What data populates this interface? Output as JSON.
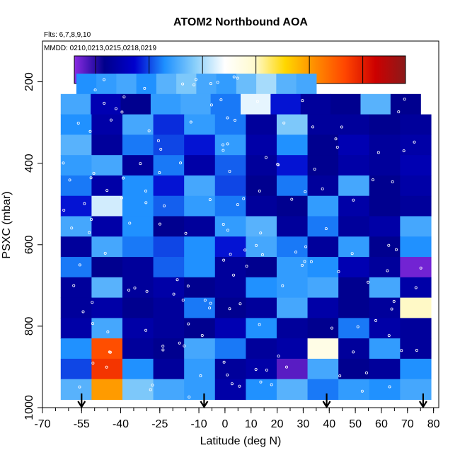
{
  "chart_data": {
    "type": "heatmap",
    "title": "ATOM2 Northbound AOA",
    "flights_label": "Flts: 6,7,8,9,10",
    "dates_label": "MMDD: 0210,0213,0215,0218,0219",
    "xlabel": "Latitude (deg N)",
    "ylabel": "PSXC (mbar)",
    "xlim": [
      -70,
      82
    ],
    "ylim": [
      1000,
      100
    ],
    "x_ticks": [
      -70,
      -55,
      -40,
      -25,
      -10,
      0,
      10,
      20,
      30,
      40,
      50,
      60,
      70,
      80
    ],
    "x_minor_step": 5,
    "y_ticks": [
      200,
      400,
      600,
      800,
      1000
    ],
    "colorbar": {
      "range": [
        -0.4,
        5.8
      ],
      "ticks": [
        0,
        1,
        2,
        3,
        4,
        5
      ],
      "colors": [
        "#8a2be2",
        "#00008b",
        "#0000cd",
        "#1e90ff",
        "#87cefa",
        "#ffffff",
        "#fffacd",
        "#ffd700",
        "#ff8c00",
        "#ff4500",
        "#cd0000",
        "#8b1a1a"
      ]
    },
    "layer_pressures": [
      200,
      250,
      300,
      350,
      400,
      450,
      500,
      550,
      600,
      650,
      700,
      750,
      800,
      850,
      900,
      950
    ],
    "segments": [
      {
        "p": 200,
        "lat0": -57,
        "lat1": 35,
        "values": [
          1.3,
          1.4,
          1.5,
          1.3,
          1.6,
          1.8,
          1.5,
          1.4,
          1.7,
          2.0,
          1.6,
          1.5
        ]
      },
      {
        "p": 250,
        "lat0": -63,
        "lat1": 75,
        "values": [
          1.5,
          0.5,
          0.2,
          1.4,
          1.5,
          1.2,
          2.3,
          0.8,
          0.3,
          0.2,
          1.6,
          0.2
        ]
      },
      {
        "p": 300,
        "lat0": -63,
        "lat1": 79,
        "values": [
          1.3,
          0.4,
          1.5,
          0.9,
          1.4,
          1.2,
          0.3,
          1.8,
          0.3,
          0.3,
          0.2,
          0.3
        ]
      },
      {
        "p": 350,
        "lat0": -63,
        "lat1": 79,
        "values": [
          1.6,
          0.3,
          1.2,
          1.0,
          0.8,
          1.4,
          0.4,
          1.3,
          0.2,
          0.5,
          0.3,
          0.4
        ]
      },
      {
        "p": 400,
        "lat0": -63,
        "lat1": 79,
        "values": [
          1.4,
          1.5,
          0.3,
          1.2,
          0.4,
          1.1,
          0.3,
          0.8,
          0.2,
          0.4,
          0.3,
          0.5
        ]
      },
      {
        "p": 450,
        "lat0": -63,
        "lat1": 79,
        "values": [
          1.2,
          0.4,
          1.3,
          0.8,
          1.5,
          1.0,
          0.2,
          1.2,
          0.3,
          1.5,
          0.2,
          0.4
        ]
      },
      {
        "p": 500,
        "lat0": -63,
        "lat1": 79,
        "values": [
          0.8,
          2.2,
          1.3,
          1.1,
          1.4,
          1.2,
          0.3,
          0.2,
          1.4,
          0.4,
          0.2,
          0.3
        ]
      },
      {
        "p": 550,
        "lat0": -63,
        "lat1": 79,
        "values": [
          1.5,
          0.4,
          1.3,
          0.2,
          0.3,
          1.4,
          1.6,
          0.3,
          1.2,
          0.3,
          0.4,
          1.5
        ]
      },
      {
        "p": 600,
        "lat0": -63,
        "lat1": 79,
        "values": [
          0.3,
          1.5,
          1.2,
          1.0,
          1.3,
          0.8,
          1.5,
          1.2,
          0.3,
          1.4,
          0.2,
          1.3
        ]
      },
      {
        "p": 650,
        "lat0": -63,
        "lat1": 79,
        "values": [
          1.2,
          0.2,
          0.3,
          1.1,
          1.3,
          0.3,
          0.2,
          1.4,
          1.3,
          0.5,
          0.3,
          -0.3
        ]
      },
      {
        "p": 700,
        "lat0": -63,
        "lat1": 79,
        "values": [
          0.3,
          1.6,
          0.3,
          0.4,
          0.2,
          0.3,
          1.3,
          1.4,
          1.5,
          0.2,
          1.5,
          0.4
        ]
      },
      {
        "p": 750,
        "lat0": -63,
        "lat1": 79,
        "values": [
          0.3,
          0.4,
          0.2,
          0.3,
          1.2,
          0.2,
          0.3,
          1.5,
          0.4,
          0.2,
          0.3,
          3.0
        ]
      },
      {
        "p": 800,
        "lat0": -63,
        "lat1": 79,
        "values": [
          0.4,
          1.5,
          0.4,
          0.3,
          0.2,
          0.5,
          1.3,
          0.3,
          0.2,
          1.2,
          0.4,
          0.3
        ]
      },
      {
        "p": 850,
        "lat0": -63,
        "lat1": 79,
        "values": [
          1.3,
          4.6,
          0.3,
          0.2,
          1.5,
          1.2,
          0.3,
          0.4,
          2.7,
          0.3,
          1.4,
          0.3
        ]
      },
      {
        "p": 900,
        "lat0": -63,
        "lat1": 79,
        "values": [
          1.0,
          4.8,
          1.3,
          0.3,
          1.4,
          0.3,
          0.4,
          -0.2,
          1.5,
          0.2,
          0.3,
          1.3
        ]
      },
      {
        "p": 950,
        "lat0": -63,
        "lat1": 79,
        "values": [
          1.6,
          4.0,
          1.8,
          1.5,
          1.4,
          0.4,
          1.3,
          1.6,
          1.2,
          1.4,
          1.3,
          1.5
        ]
      }
    ],
    "profile_arrows_lat": [
      -55,
      -8,
      39,
      76
    ]
  }
}
